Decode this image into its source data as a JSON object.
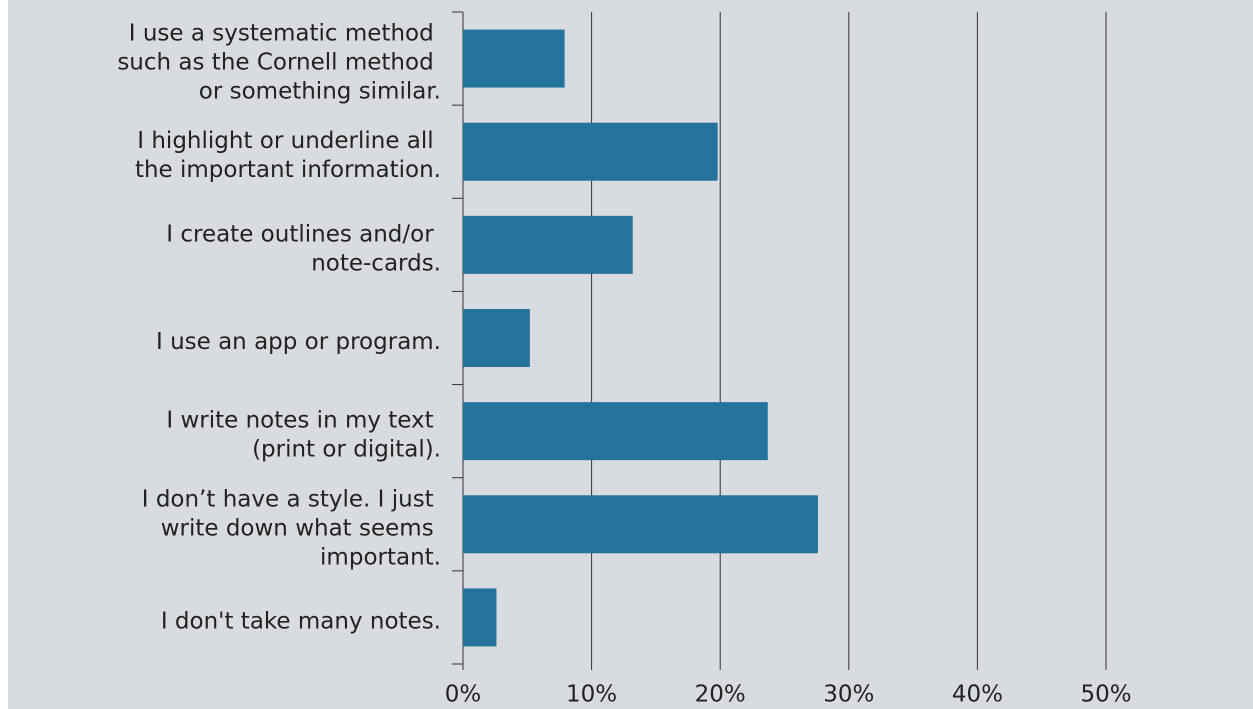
{
  "chart_data": {
    "type": "bar",
    "orientation": "horizontal",
    "categories": [
      "I use a systematic method such as the Cornell method or something similar.",
      "I highlight or underline all the important information.",
      "I create outlines and/or note-cards.",
      "I use an app or program.",
      "I write notes in my text (print or digital).",
      "I don’t have a style. I just write down what seems important.",
      "I don't take many notes."
    ],
    "values": [
      7.9,
      19.8,
      13.2,
      5.2,
      23.7,
      27.6,
      2.6
    ],
    "color": "#23739d",
    "xlim": [
      0,
      50
    ],
    "xticks": [
      {
        "value": 0,
        "label": "0%"
      },
      {
        "value": 10,
        "label": "10%"
      },
      {
        "value": 20,
        "label": "20%"
      },
      {
        "value": 30,
        "label": "30%"
      },
      {
        "value": 40,
        "label": "40%"
      },
      {
        "value": 50,
        "label": "50%"
      }
    ],
    "grid": true
  }
}
